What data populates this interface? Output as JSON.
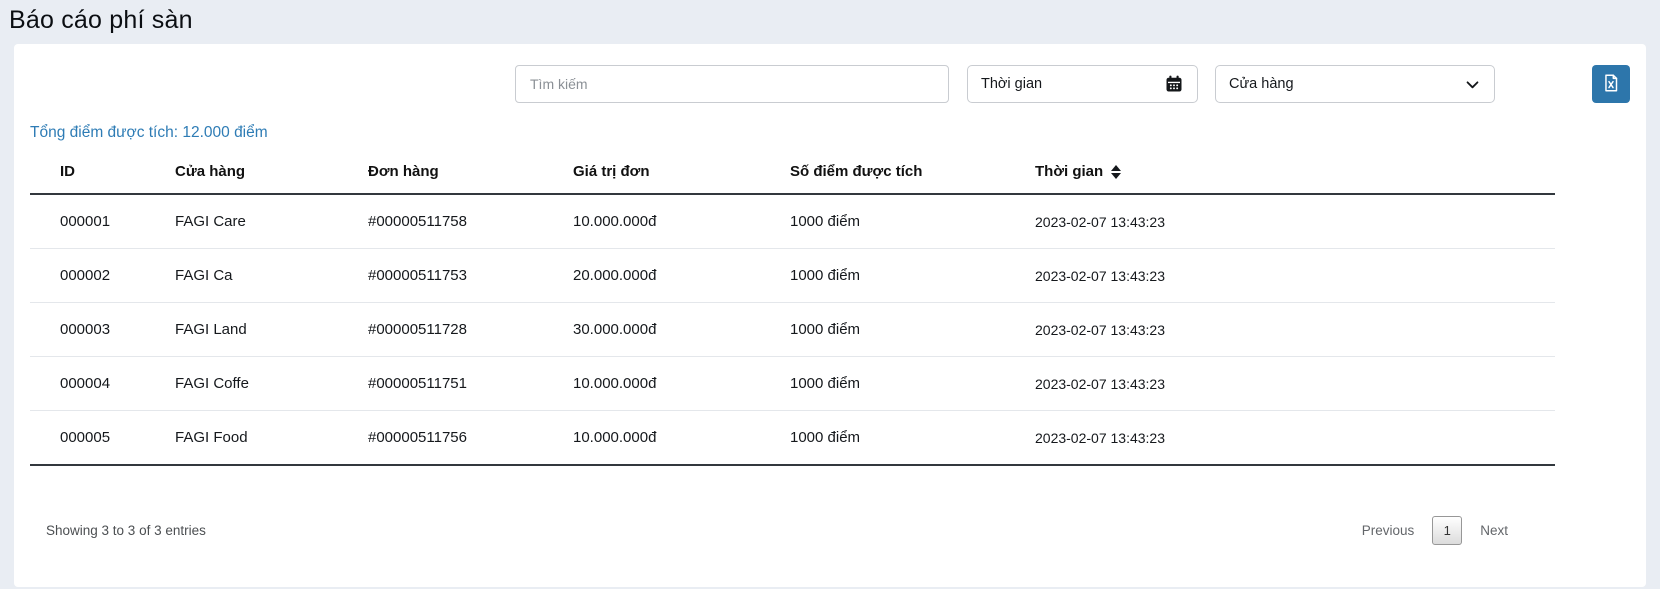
{
  "page": {
    "title": "Báo cáo phí sàn"
  },
  "filters": {
    "search": {
      "placeholder": "Tìm kiếm"
    },
    "date": {
      "label": "Thời gian",
      "icon": "calendar-icon"
    },
    "store": {
      "label": "Cửa hàng",
      "icon": "chevron-down-icon"
    },
    "export_button": {
      "icon": "file-excel-icon"
    }
  },
  "summary": {
    "total_points_label": "Tổng điểm được tích: 12.000 điểm"
  },
  "table": {
    "columns": [
      "ID",
      "Cửa hàng",
      "Đơn hàng",
      "Giá trị đơn",
      "Số điểm được tích",
      "Thời gian"
    ],
    "sortable_column_index": 5,
    "rows": [
      [
        "000001",
        "FAGI Care",
        "#00000511758",
        "10.000.000đ",
        "1000 điểm",
        "2023-02-07 13:43:23"
      ],
      [
        "000002",
        "FAGI Ca",
        "#00000511753",
        "20.000.000đ",
        "1000 điểm",
        "2023-02-07 13:43:23"
      ],
      [
        "000003",
        "FAGI Land",
        "#00000511728",
        "30.000.000đ",
        "1000 điểm",
        "2023-02-07 13:43:23"
      ],
      [
        "000004",
        "FAGI Coffe",
        "#00000511751",
        "10.000.000đ",
        "1000 điểm",
        "2023-02-07 13:43:23"
      ],
      [
        "000005",
        "FAGI Food",
        "#00000511756",
        "10.000.000đ",
        "1000 điểm",
        "2023-02-07 13:43:23"
      ]
    ]
  },
  "pagination": {
    "info": "Showing 3 to 3 of 3 entries",
    "previous_label": "Previous",
    "current_page": "1",
    "next_label": "Next"
  },
  "colors": {
    "page_background": "#e9edf3",
    "accent_blue": "#2e7cb5",
    "export_button_blue": "#2d76ab",
    "header_border_dark": "#32383e"
  }
}
